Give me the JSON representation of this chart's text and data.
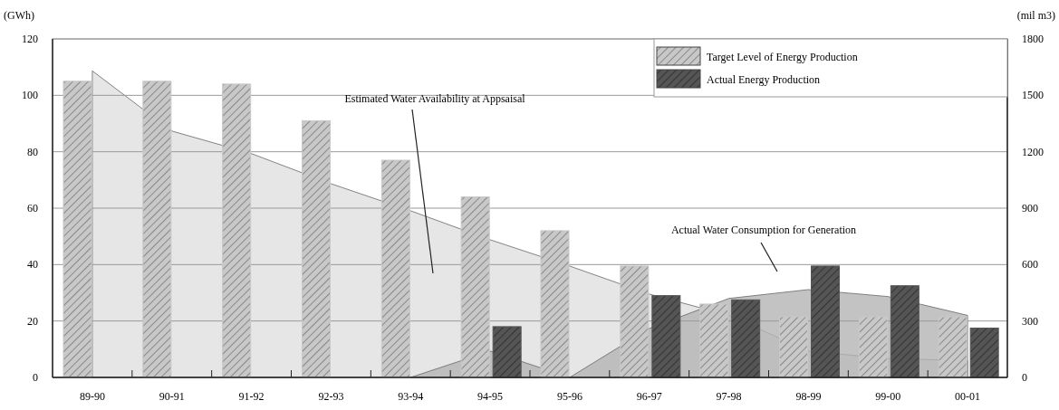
{
  "chart_data": {
    "type": "bar",
    "ylabel": "(GWh)",
    "y2label": "(mil m3)",
    "categories": [
      "89-90",
      "90-91",
      "91-92",
      "92-93",
      "93-94",
      "94-95",
      "95-96",
      "96-97",
      "97-98",
      "98-99",
      "99-00",
      "00-01"
    ],
    "series": [
      {
        "type": "area",
        "axis": "y2",
        "color": "#e6e6e6",
        "values": [
          1630,
          1310,
          1190,
          1030,
          886,
          732,
          592,
          443,
          330,
          140,
          100,
          90
        ]
      },
      {
        "type": "area",
        "axis": "y2",
        "color": "#b4b4b4",
        "values": [
          null,
          null,
          null,
          null,
          0,
          140,
          0,
          260,
          420,
          467,
          430,
          330
        ]
      },
      {
        "name": "Target Level of Energy Production",
        "color": "#c8c8c8",
        "values": [
          105,
          105,
          104,
          91,
          77,
          64,
          52,
          39.5,
          26,
          21.5,
          21.5,
          21.5
        ]
      },
      {
        "name": "Actual Energy Production",
        "color": "#555555",
        "values": [
          null,
          null,
          null,
          null,
          null,
          18,
          null,
          29,
          27.5,
          39.5,
          32.5,
          17.5
        ]
      }
    ],
    "ylim": [
      0,
      120
    ],
    "yticks": [
      0,
      20,
      40,
      60,
      80,
      100,
      120
    ],
    "y2lim": [
      0,
      1800
    ],
    "y2ticks": [
      0,
      300,
      600,
      900,
      1200,
      1500,
      1800
    ],
    "grid": "y",
    "legend": "top right",
    "annotations": [
      "Estimated Water Availability at Appsaisal",
      "Actual Water Consumption for Generation"
    ]
  }
}
